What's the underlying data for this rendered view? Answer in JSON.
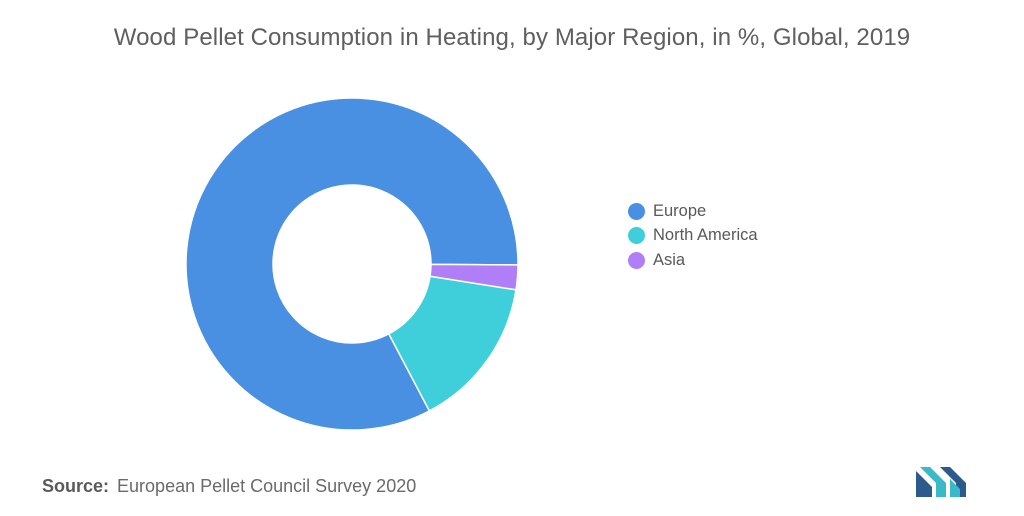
{
  "chart_data": {
    "type": "pie",
    "title": "Wood Pellet Consumption in Heating, by Major Region, in %, Global, 2019",
    "donut": true,
    "legend_position": "right",
    "categories": [
      "Europe",
      "North America",
      "Asia"
    ],
    "values": [
      82.8,
      14.8,
      2.4
    ],
    "colors": [
      "#4a90e2",
      "#3ecfdb",
      "#b07ef7"
    ]
  },
  "legend": {
    "items": [
      {
        "label": "Europe",
        "color": "#4a90e2"
      },
      {
        "label": "North America",
        "color": "#3ecfdb"
      },
      {
        "label": "Asia",
        "color": "#b07ef7"
      }
    ]
  },
  "source": {
    "label": "Source:",
    "text": "European Pellet Council Survey 2020"
  },
  "logo": {
    "icon": "mordor-intelligence-logo",
    "colors": [
      "#2c5a8c",
      "#3bb9c9"
    ]
  }
}
